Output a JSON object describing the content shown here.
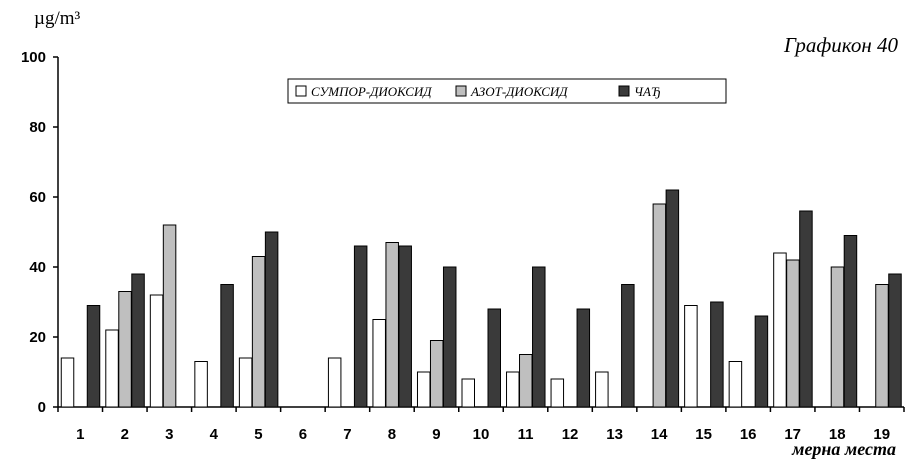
{
  "chart_data": {
    "type": "bar",
    "title": "Графикон 40",
    "ylabel": "µg/m³",
    "xlabel": "мерна места",
    "ylim": [
      0,
      100
    ],
    "yticks": [
      0,
      20,
      40,
      60,
      80,
      100
    ],
    "grid": false,
    "legend_position": "top-center",
    "categories": [
      "1",
      "2",
      "3",
      "4",
      "5",
      "6",
      "7",
      "8",
      "9",
      "10",
      "11",
      "12",
      "13",
      "14",
      "15",
      "16",
      "17",
      "18",
      "19"
    ],
    "series": [
      {
        "name": "СУМПОР-ДИОКСИД",
        "color": "#ffffff",
        "values": [
          14,
          22,
          32,
          13,
          14,
          null,
          14,
          25,
          10,
          8,
          10,
          8,
          10,
          null,
          29,
          13,
          44,
          null,
          null
        ]
      },
      {
        "name": "АЗОТ-ДИОКСИД",
        "color": "#bfbfbf",
        "values": [
          null,
          33,
          52,
          null,
          43,
          null,
          null,
          47,
          19,
          null,
          15,
          null,
          null,
          58,
          null,
          null,
          42,
          40,
          35
        ]
      },
      {
        "name": "ЧАЂ",
        "color": "#3a3a3a",
        "values": [
          29,
          38,
          null,
          35,
          50,
          null,
          46,
          46,
          40,
          28,
          40,
          28,
          35,
          62,
          30,
          26,
          56,
          49,
          38
        ]
      }
    ]
  }
}
